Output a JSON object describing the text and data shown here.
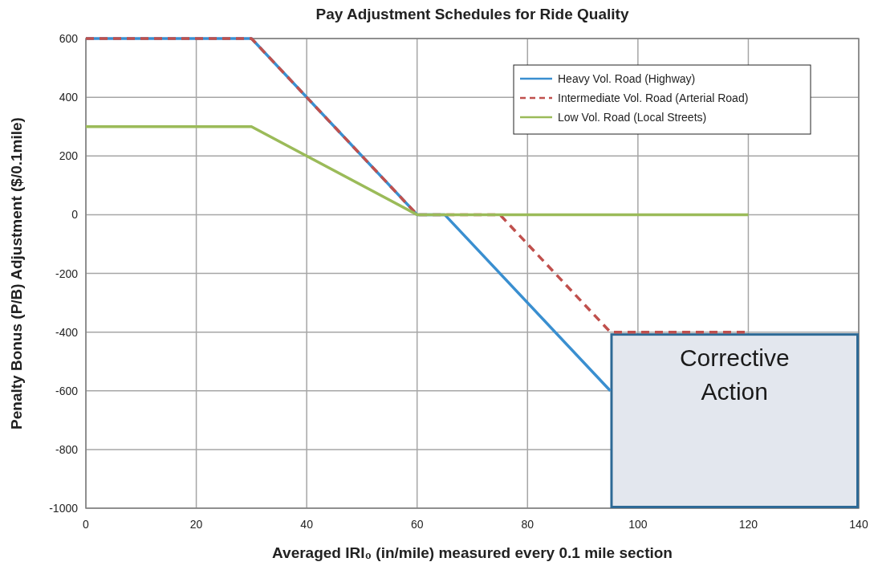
{
  "chart_data": {
    "type": "line",
    "title": "Pay Adjustment Schedules for Ride Quality",
    "xlabel": "Averaged IRI₀ (in/mile) measured every 0.1 mile section",
    "ylabel": "Penalty Bonus (P/B) Adjustment ($/0.1mile)",
    "xlim": [
      0,
      140
    ],
    "xticks": [
      0,
      20,
      40,
      60,
      80,
      100,
      120,
      140
    ],
    "ylim": [
      -1000,
      600
    ],
    "yticks": [
      -1000,
      -800,
      -600,
      -400,
      -200,
      0,
      200,
      400,
      600
    ],
    "grid": true,
    "legend": "top right",
    "marker": "none",
    "series": [
      {
        "name": "Heavy Vol. Road (Highway)",
        "color": "#3a8fd0",
        "line_style": "solid",
        "x": [
          0,
          30,
          60,
          65,
          95
        ],
        "values": [
          600,
          600,
          0,
          0,
          -600
        ]
      },
      {
        "name": "Intermediate Vol. Road (Arterial Road)",
        "color": "#c0504d",
        "line_style": "dashed",
        "x": [
          0,
          30,
          60,
          75,
          95,
          120
        ],
        "values": [
          600,
          600,
          0,
          0,
          -400,
          -400
        ]
      },
      {
        "name": "Low Vol. Road (Local Streets)",
        "color": "#9bbb59",
        "line_style": "solid",
        "x": [
          0,
          30,
          60,
          120
        ],
        "values": [
          300,
          300,
          0,
          0
        ]
      }
    ],
    "annotations": [
      {
        "text": "Corrective Action",
        "x": 95,
        "y": -400
      }
    ]
  }
}
